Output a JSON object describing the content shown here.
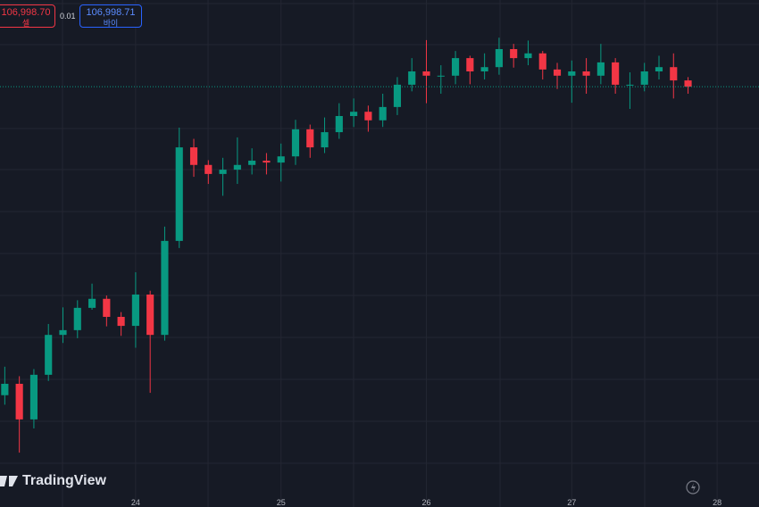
{
  "ui": {
    "sell_price": "106,998.70",
    "sell_label": "셀",
    "spread": "0.01",
    "buy_price": "106,998.71",
    "buy_label": "바이",
    "logo": "TradingView"
  },
  "chart_data": {
    "type": "candlestick",
    "x": [
      23.1,
      23.2,
      23.3,
      23.4,
      23.5,
      23.6,
      23.7,
      23.8,
      23.9,
      24.0,
      24.1,
      24.2,
      24.3,
      24.4,
      24.5,
      24.6,
      24.7,
      24.8,
      24.9,
      25.0,
      25.1,
      25.2,
      25.3,
      25.4,
      25.5,
      25.6,
      25.7,
      25.8,
      25.9,
      26.0,
      26.1,
      26.2,
      26.3,
      26.4,
      26.5,
      26.6,
      26.7,
      26.8,
      26.9,
      27.0,
      27.1,
      27.2,
      27.3,
      27.4,
      27.5,
      27.6,
      27.7,
      27.8
    ],
    "open": [
      100500,
      100740,
      99990,
      100930,
      101770,
      101870,
      102340,
      102530,
      102150,
      101960,
      102620,
      101770,
      103750,
      105720,
      105350,
      105160,
      105250,
      105350,
      105440,
      105400,
      105530,
      106100,
      105720,
      106040,
      106380,
      106470,
      106290,
      106570,
      107040,
      107320,
      107230,
      107230,
      107600,
      107320,
      107410,
      107790,
      107600,
      107700,
      107360,
      107230,
      107320,
      107230,
      107510,
      107040,
      107040,
      107320,
      107410,
      107130
    ],
    "high": [
      101100,
      100900,
      101050,
      102000,
      102350,
      102500,
      102850,
      102600,
      102250,
      103090,
      102700,
      104050,
      106135,
      105900,
      105450,
      105500,
      105930,
      105700,
      105600,
      105800,
      106300,
      106200,
      106350,
      106650,
      106750,
      106600,
      106850,
      107200,
      107600,
      107980,
      107450,
      107750,
      107650,
      107700,
      108030,
      107900,
      107970,
      107750,
      107500,
      107550,
      107600,
      107900,
      107600,
      107300,
      107500,
      107650,
      107700,
      107200
    ],
    "low": [
      100300,
      99290,
      99800,
      100800,
      101600,
      101700,
      102300,
      101950,
      101750,
      101500,
      100550,
      101650,
      103600,
      105100,
      104950,
      104700,
      104950,
      105150,
      105150,
      105000,
      105350,
      105500,
      105600,
      105900,
      106150,
      106050,
      106150,
      106400,
      106900,
      106650,
      106850,
      107050,
      107050,
      107150,
      107250,
      107400,
      107450,
      107150,
      106950,
      106660,
      106850,
      107050,
      106850,
      106530,
      106900,
      107150,
      106750,
      106850
    ],
    "close": [
      100740,
      99990,
      100930,
      101770,
      101870,
      102340,
      102530,
      102150,
      101960,
      102620,
      101770,
      103750,
      105720,
      105350,
      105160,
      105250,
      105350,
      105440,
      105400,
      105530,
      106100,
      105720,
      106040,
      106380,
      106470,
      106290,
      106570,
      107040,
      107320,
      107230,
      107230,
      107600,
      107320,
      107410,
      107790,
      107600,
      107700,
      107360,
      107230,
      107320,
      107230,
      107510,
      107040,
      107040,
      107320,
      107410,
      107130,
      106998.7
    ],
    "xlim": [
      23.067,
      28.288
    ],
    "xticks": [
      24,
      25,
      26,
      27,
      28
    ],
    "ylim": [
      98145,
      108824
    ],
    "up_color": "#089981",
    "down_color": "#f23645"
  }
}
